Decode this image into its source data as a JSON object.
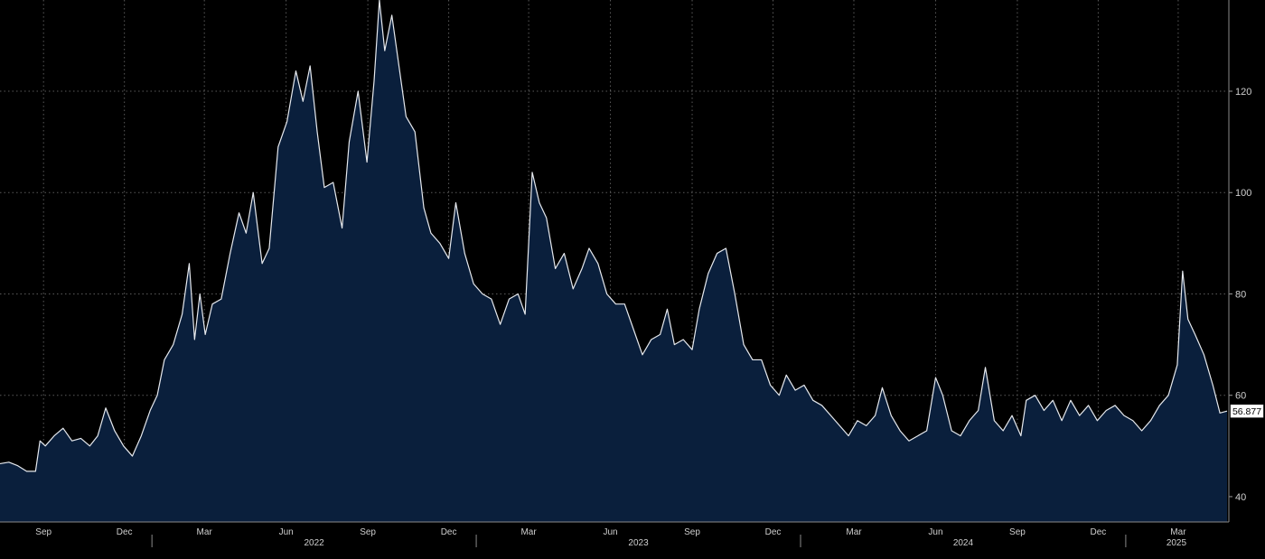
{
  "chart_data": {
    "type": "area",
    "title": "",
    "xlabel": "",
    "ylabel": "",
    "x_range": [
      "2021-07-14",
      "2025-04-25"
    ],
    "ylim": [
      35,
      138
    ],
    "yticks": [
      40,
      60,
      80,
      100,
      120
    ],
    "grid": true,
    "legend": "none",
    "last_value_label": "56.877",
    "month_ticks": [
      {
        "label": "Sep",
        "date": "2021-09-01"
      },
      {
        "label": "Dec",
        "date": "2021-12-01"
      },
      {
        "label": "Mar",
        "date": "2022-03-01"
      },
      {
        "label": "Jun",
        "date": "2022-06-01"
      },
      {
        "label": "Sep",
        "date": "2022-09-01"
      },
      {
        "label": "Dec",
        "date": "2022-12-01"
      },
      {
        "label": "Mar",
        "date": "2023-03-01"
      },
      {
        "label": "Jun",
        "date": "2023-06-01"
      },
      {
        "label": "Sep",
        "date": "2023-09-01"
      },
      {
        "label": "Dec",
        "date": "2023-12-01"
      },
      {
        "label": "Mar",
        "date": "2024-03-01"
      },
      {
        "label": "Jun",
        "date": "2024-06-01"
      },
      {
        "label": "Sep",
        "date": "2024-09-01"
      },
      {
        "label": "Dec",
        "date": "2024-12-01"
      },
      {
        "label": "Mar",
        "date": "2025-03-01"
      }
    ],
    "year_labels": [
      {
        "label": "2022",
        "start": "2022-01-01",
        "end": "2023-01-01"
      },
      {
        "label": "2023",
        "start": "2023-01-01",
        "end": "2024-01-01"
      },
      {
        "label": "2024",
        "start": "2024-01-01",
        "end": "2025-01-01"
      },
      {
        "label": "2025",
        "start": "2025-01-01",
        "end": "2025-04-25"
      }
    ],
    "series": [
      {
        "points": [
          [
            "2021-07-14",
            46.5
          ],
          [
            "2021-07-24",
            46.8
          ],
          [
            "2021-08-03",
            46.1
          ],
          [
            "2021-08-13",
            45.0
          ],
          [
            "2021-08-23",
            45.0
          ],
          [
            "2021-08-28",
            51.0
          ],
          [
            "2021-09-03",
            50.0
          ],
          [
            "2021-09-13",
            52.0
          ],
          [
            "2021-09-23",
            53.5
          ],
          [
            "2021-10-03",
            51.0
          ],
          [
            "2021-10-13",
            51.5
          ],
          [
            "2021-10-23",
            50.0
          ],
          [
            "2021-11-01",
            52.0
          ],
          [
            "2021-11-10",
            57.5
          ],
          [
            "2021-11-20",
            53.0
          ],
          [
            "2021-11-30",
            50.0
          ],
          [
            "2021-12-10",
            48.0
          ],
          [
            "2021-12-20",
            52.0
          ],
          [
            "2021-12-30",
            57.0
          ],
          [
            "2022-01-07",
            60.0
          ],
          [
            "2022-01-15",
            67.0
          ],
          [
            "2022-01-25",
            70.0
          ],
          [
            "2022-02-04",
            76.0
          ],
          [
            "2022-02-12",
            86.0
          ],
          [
            "2022-02-18",
            71.0
          ],
          [
            "2022-02-24",
            80.0
          ],
          [
            "2022-03-02",
            72.0
          ],
          [
            "2022-03-10",
            78.0
          ],
          [
            "2022-03-20",
            79.0
          ],
          [
            "2022-03-30",
            88.0
          ],
          [
            "2022-04-09",
            96.0
          ],
          [
            "2022-04-17",
            92.0
          ],
          [
            "2022-04-25",
            100.0
          ],
          [
            "2022-05-05",
            86.0
          ],
          [
            "2022-05-13",
            89.0
          ],
          [
            "2022-05-23",
            109.0
          ],
          [
            "2022-06-02",
            114.0
          ],
          [
            "2022-06-12",
            124.0
          ],
          [
            "2022-06-20",
            118.0
          ],
          [
            "2022-06-28",
            125.0
          ],
          [
            "2022-07-06",
            112.0
          ],
          [
            "2022-07-14",
            101.0
          ],
          [
            "2022-07-24",
            102.0
          ],
          [
            "2022-08-03",
            93.0
          ],
          [
            "2022-08-11",
            110.0
          ],
          [
            "2022-08-21",
            120.0
          ],
          [
            "2022-08-31",
            106.0
          ],
          [
            "2022-09-08",
            122.0
          ],
          [
            "2022-09-14",
            138.0
          ],
          [
            "2022-09-20",
            128.0
          ],
          [
            "2022-09-28",
            135.0
          ],
          [
            "2022-10-06",
            125.0
          ],
          [
            "2022-10-14",
            115.0
          ],
          [
            "2022-10-24",
            112.0
          ],
          [
            "2022-11-03",
            97.0
          ],
          [
            "2022-11-11",
            92.0
          ],
          [
            "2022-11-21",
            90.0
          ],
          [
            "2022-12-01",
            87.0
          ],
          [
            "2022-12-09",
            98.0
          ],
          [
            "2022-12-19",
            88.0
          ],
          [
            "2022-12-29",
            82.0
          ],
          [
            "2023-01-08",
            80.0
          ],
          [
            "2023-01-18",
            79.0
          ],
          [
            "2023-01-28",
            74.0
          ],
          [
            "2023-02-07",
            79.0
          ],
          [
            "2023-02-17",
            80.0
          ],
          [
            "2023-02-25",
            76.0
          ],
          [
            "2023-03-05",
            104.0
          ],
          [
            "2023-03-13",
            98.0
          ],
          [
            "2023-03-21",
            95.0
          ],
          [
            "2023-03-31",
            85.0
          ],
          [
            "2023-04-10",
            88.0
          ],
          [
            "2023-04-20",
            81.0
          ],
          [
            "2023-04-30",
            85.0
          ],
          [
            "2023-05-08",
            89.0
          ],
          [
            "2023-05-18",
            86.0
          ],
          [
            "2023-05-28",
            80.0
          ],
          [
            "2023-06-07",
            78.0
          ],
          [
            "2023-06-17",
            78.0
          ],
          [
            "2023-06-27",
            73.0
          ],
          [
            "2023-07-07",
            68.0
          ],
          [
            "2023-07-17",
            71.0
          ],
          [
            "2023-07-27",
            72.0
          ],
          [
            "2023-08-04",
            77.0
          ],
          [
            "2023-08-12",
            70.0
          ],
          [
            "2023-08-22",
            71.0
          ],
          [
            "2023-09-01",
            69.0
          ],
          [
            "2023-09-09",
            77.0
          ],
          [
            "2023-09-19",
            84.0
          ],
          [
            "2023-09-29",
            88.0
          ],
          [
            "2023-10-09",
            89.0
          ],
          [
            "2023-10-19",
            80.0
          ],
          [
            "2023-10-29",
            70.0
          ],
          [
            "2023-11-08",
            67.0
          ],
          [
            "2023-11-18",
            67.0
          ],
          [
            "2023-11-28",
            62.0
          ],
          [
            "2023-12-08",
            60.0
          ],
          [
            "2023-12-16",
            64.0
          ],
          [
            "2023-12-26",
            61.0
          ],
          [
            "2024-01-05",
            62.0
          ],
          [
            "2024-01-15",
            59.0
          ],
          [
            "2024-01-25",
            58.0
          ],
          [
            "2024-02-04",
            56.0
          ],
          [
            "2024-02-14",
            54.0
          ],
          [
            "2024-02-24",
            52.0
          ],
          [
            "2024-03-05",
            55.0
          ],
          [
            "2024-03-15",
            54.0
          ],
          [
            "2024-03-25",
            56.0
          ],
          [
            "2024-04-02",
            61.5
          ],
          [
            "2024-04-12",
            56.0
          ],
          [
            "2024-04-22",
            53.0
          ],
          [
            "2024-05-02",
            51.0
          ],
          [
            "2024-05-12",
            52.0
          ],
          [
            "2024-05-22",
            53.0
          ],
          [
            "2024-06-01",
            63.5
          ],
          [
            "2024-06-09",
            60.0
          ],
          [
            "2024-06-19",
            53.0
          ],
          [
            "2024-06-29",
            52.0
          ],
          [
            "2024-07-09",
            55.0
          ],
          [
            "2024-07-19",
            57.0
          ],
          [
            "2024-07-27",
            65.5
          ],
          [
            "2024-08-06",
            55.0
          ],
          [
            "2024-08-16",
            53.0
          ],
          [
            "2024-08-26",
            56.0
          ],
          [
            "2024-09-05",
            52.0
          ],
          [
            "2024-09-11",
            59.0
          ],
          [
            "2024-09-21",
            60.0
          ],
          [
            "2024-10-01",
            57.0
          ],
          [
            "2024-10-11",
            59.0
          ],
          [
            "2024-10-21",
            55.0
          ],
          [
            "2024-10-31",
            59.0
          ],
          [
            "2024-11-10",
            56.0
          ],
          [
            "2024-11-20",
            58.0
          ],
          [
            "2024-11-30",
            55.0
          ],
          [
            "2024-12-10",
            57.0
          ],
          [
            "2024-12-20",
            58.0
          ],
          [
            "2024-12-30",
            56.0
          ],
          [
            "2025-01-09",
            55.0
          ],
          [
            "2025-01-19",
            53.0
          ],
          [
            "2025-01-29",
            55.0
          ],
          [
            "2025-02-08",
            58.0
          ],
          [
            "2025-02-18",
            60.0
          ],
          [
            "2025-02-28",
            66.0
          ],
          [
            "2025-03-06",
            84.5
          ],
          [
            "2025-03-12",
            75.0
          ],
          [
            "2025-03-20",
            72.0
          ],
          [
            "2025-03-30",
            68.0
          ],
          [
            "2025-04-09",
            62.0
          ],
          [
            "2025-04-17",
            56.5
          ],
          [
            "2025-04-25",
            56.877
          ]
        ]
      }
    ]
  }
}
